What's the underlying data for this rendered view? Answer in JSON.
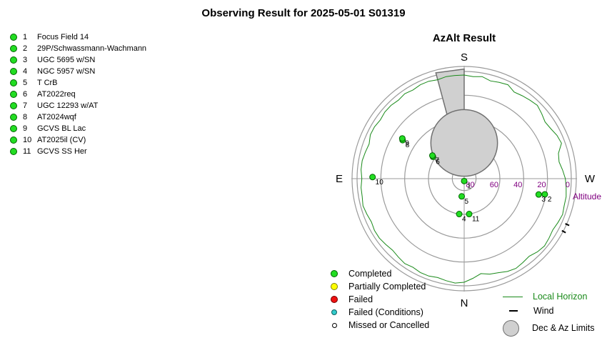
{
  "title": "Observing Result for 2025-05-01  S01319",
  "targets": [
    {
      "num": "1",
      "name": "Focus Field 14"
    },
    {
      "num": "2",
      "name": "29P/Schwassmann-Wachmann"
    },
    {
      "num": "3",
      "name": "UGC 5695 w/SN"
    },
    {
      "num": "4",
      "name": "NGC 5957 w/SN"
    },
    {
      "num": "5",
      "name": "T CrB"
    },
    {
      "num": "6",
      "name": "AT2022req"
    },
    {
      "num": "7",
      "name": "UGC 12293 w/AT"
    },
    {
      "num": "8",
      "name": "AT2024wqf"
    },
    {
      "num": "9",
      "name": "GCVS BL Lac"
    },
    {
      "num": "10",
      "name": "AT2025il (CV)"
    },
    {
      "num": "11",
      "name": "GCVS SS Her"
    }
  ],
  "legend": {
    "completed": "Completed",
    "partial": "Partially Completed",
    "failed": "Failed",
    "failed_conditions": "Failed (Conditions)",
    "missed": "Missed or Cancelled",
    "local_horizon": "Local Horizon",
    "wind": "Wind",
    "limits": "Dec & Az Limits"
  },
  "colors": {
    "completed": "#22dd22",
    "partial": "#ffff00",
    "failed": "#ee1111",
    "failed_conditions": "#33cccc",
    "missed": "#ffffff",
    "horizon": "#1a8a1a",
    "altitude_label": "#800080"
  },
  "chart_data": {
    "type": "polar-scatter",
    "title": "AzAlt Result",
    "directions": {
      "top": "S",
      "bottom": "N",
      "left": "E",
      "right": "W"
    },
    "radial_axis": {
      "label": "Altitude",
      "ticks": [
        "80",
        "60",
        "40",
        "20",
        "0"
      ],
      "values": [
        80,
        60,
        40,
        20,
        0
      ],
      "zenith": 90,
      "horizon": 0
    },
    "rings_alt": [
      90,
      80,
      60,
      40,
      20,
      0
    ],
    "points": [
      {
        "label": "1",
        "az": 180,
        "alt": 88,
        "status": "completed"
      },
      {
        "label": "2",
        "az": 101,
        "alt": 21,
        "status": "completed"
      },
      {
        "label": "3",
        "az": 102,
        "alt": 26,
        "status": "completed"
      },
      {
        "label": "4",
        "az": 188,
        "alt": 60,
        "status": "completed"
      },
      {
        "label": "5",
        "az": 188,
        "alt": 75,
        "status": "completed"
      },
      {
        "label": "6",
        "az": 305,
        "alt": 58,
        "status": "completed"
      },
      {
        "label": "7",
        "az": 306,
        "alt": 57,
        "status": "completed"
      },
      {
        "label": "8",
        "az": 302,
        "alt": 29,
        "status": "completed"
      },
      {
        "label": "9",
        "az": 303,
        "alt": 28,
        "status": "completed"
      },
      {
        "label": "10",
        "az": 271,
        "alt": 13,
        "status": "completed"
      },
      {
        "label": "11",
        "az": 172,
        "alt": 60,
        "status": "completed"
      }
    ],
    "local_horizon_alt": [
      3,
      4,
      3,
      5,
      4,
      3,
      6,
      5,
      4,
      3,
      5,
      7,
      6,
      4,
      3,
      8,
      9,
      7,
      5,
      4,
      3,
      3,
      2,
      3,
      4,
      3,
      2,
      3,
      5,
      4,
      3,
      4,
      6,
      7,
      9,
      6,
      3,
      2,
      3,
      4,
      3,
      3,
      4,
      3,
      4,
      5,
      4,
      3,
      3,
      4,
      3,
      2,
      3,
      3,
      4,
      3,
      3,
      4,
      5,
      3,
      3,
      4,
      3,
      3,
      4,
      3,
      4,
      3,
      3,
      4,
      3,
      3
    ],
    "wind_marks_az": [
      118,
      114
    ],
    "limits": {
      "dec_circle": {
        "az": 0,
        "alt": 60,
        "radius_deg": 28
      },
      "az_wedge": {
        "from": 345,
        "to": 360,
        "alt_from": 62
      }
    }
  }
}
